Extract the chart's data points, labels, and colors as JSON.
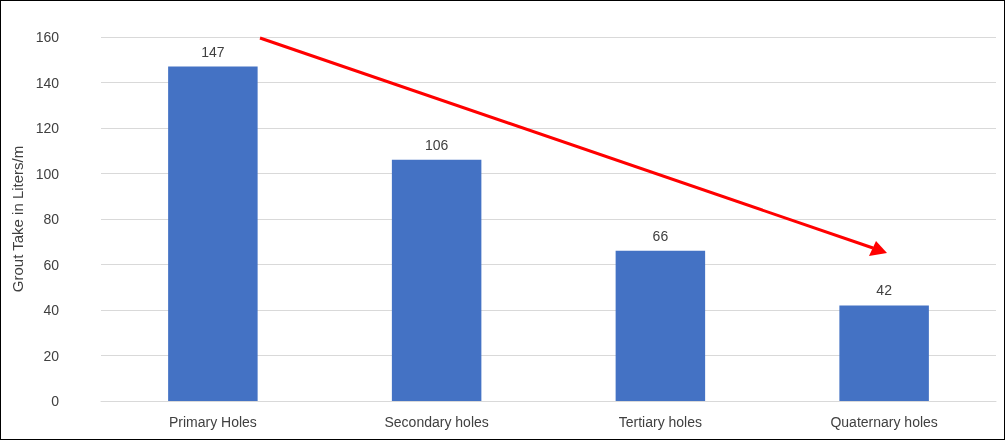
{
  "chart_data": {
    "type": "bar",
    "ylabel": "Grout Take in Liters/m",
    "categories": [
      "Primary Holes",
      "Secondary holes",
      "Tertiary holes",
      "Quaternary holes"
    ],
    "values": [
      147,
      106,
      66,
      42
    ],
    "color": "#4472c4",
    "ylim": [
      0,
      160
    ],
    "yticks": [
      0,
      20,
      40,
      60,
      80,
      100,
      120,
      140,
      160
    ],
    "grid": "y",
    "data_labels": true
  }
}
